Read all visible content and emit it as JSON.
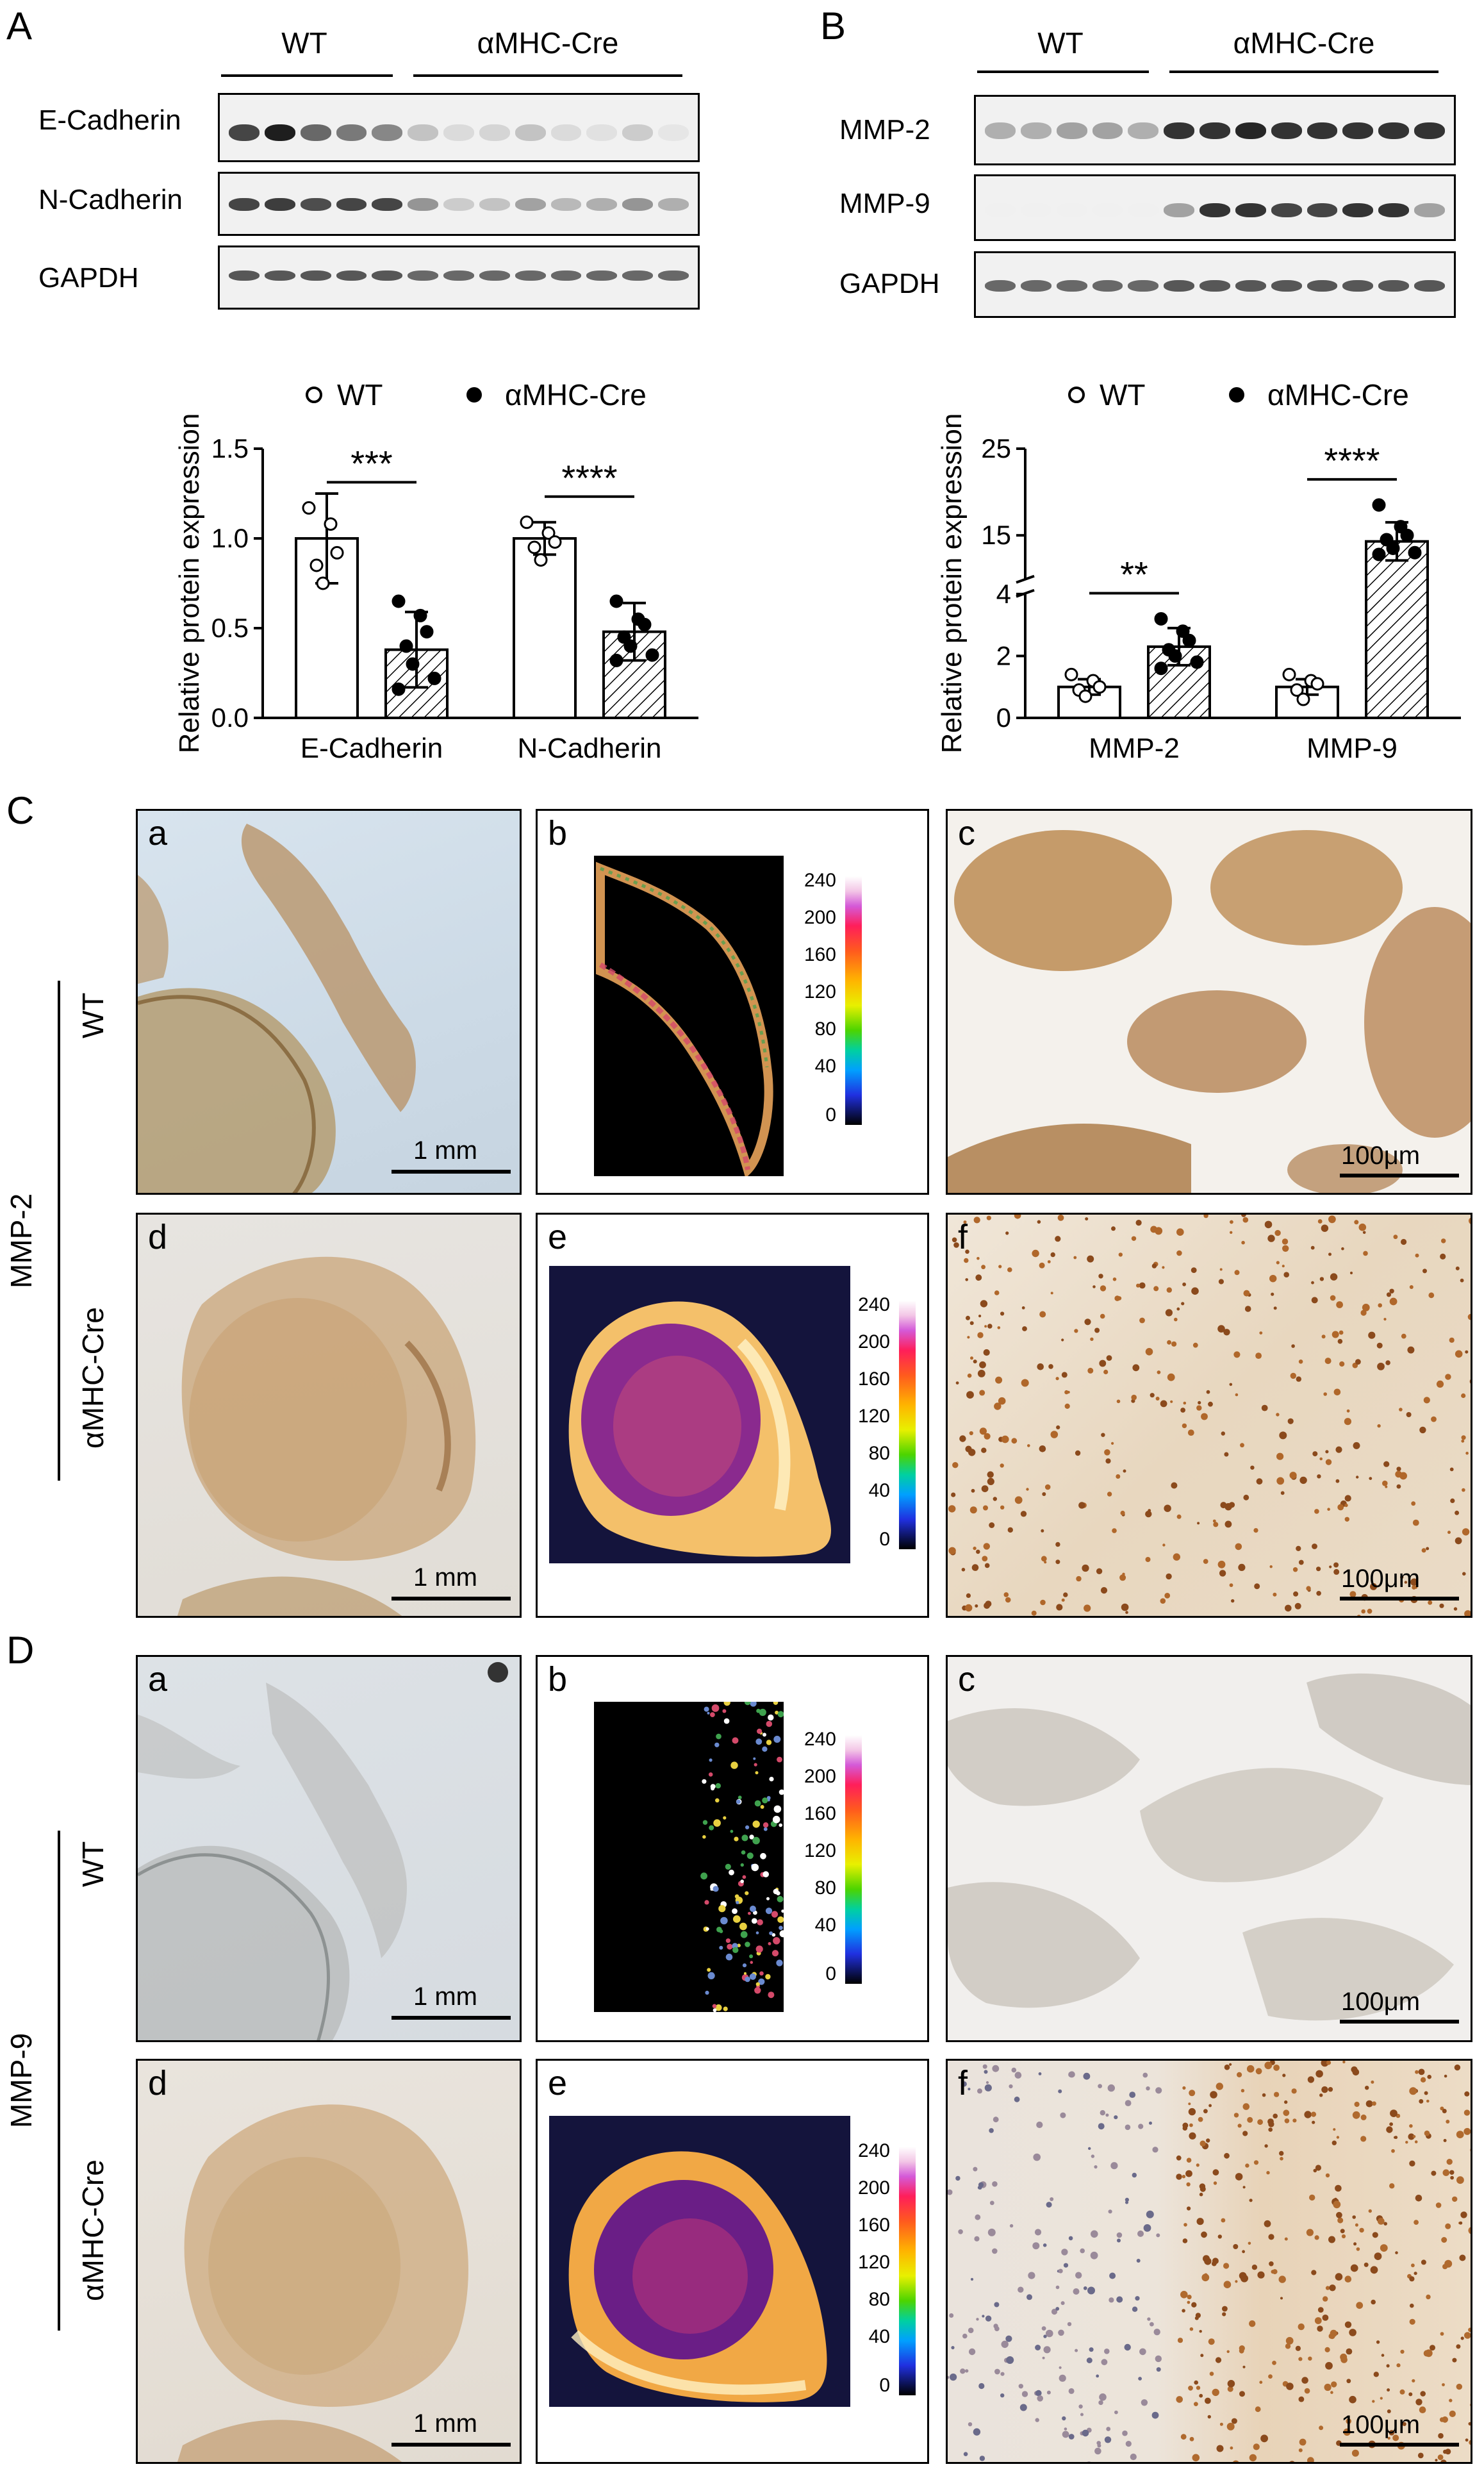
{
  "panels": {
    "A": "A",
    "B": "B",
    "C": "C",
    "D": "D"
  },
  "blot_A": {
    "groups": [
      "WT",
      "αMHC-Cre"
    ],
    "rows": [
      "E-Cadherin",
      "N-Cadherin",
      "GAPDH"
    ]
  },
  "blot_B": {
    "groups": [
      "WT",
      "αMHC-Cre"
    ],
    "rows": [
      "MMP-2",
      "MMP-9",
      "GAPDH"
    ]
  },
  "legend": {
    "wt": "WT",
    "cre": "αMHC-Cre"
  },
  "chart_data": [
    {
      "type": "bar",
      "ylabel": "Relative protein expression",
      "xlabel": "",
      "categories": [
        "E-Cadherin",
        "N-Cadherin"
      ],
      "ylim": [
        0,
        1.5
      ],
      "yticks": [
        "0.0",
        "0.5",
        "1.0",
        "1.5"
      ],
      "series": [
        {
          "name": "WT",
          "values": [
            1.0,
            1.0
          ],
          "errors": [
            0.25,
            0.09
          ],
          "points": [
            [
              1.17,
              1.08,
              0.92,
              0.85,
              0.75
            ],
            [
              1.09,
              1.03,
              0.98,
              0.95,
              0.88
            ]
          ]
        },
        {
          "name": "αMHC-Cre",
          "values": [
            0.38,
            0.48
          ],
          "errors": [
            0.21,
            0.16
          ],
          "points": [
            [
              0.65,
              0.57,
              0.48,
              0.4,
              0.3,
              0.22,
              0.16
            ],
            [
              0.65,
              0.55,
              0.52,
              0.45,
              0.4,
              0.35,
              0.32
            ]
          ]
        }
      ],
      "significance": [
        "***",
        "****"
      ]
    },
    {
      "type": "bar",
      "ylabel": "Relative protein expression",
      "xlabel": "",
      "categories": [
        "MMP-2",
        "MMP-9"
      ],
      "ylim": [
        0,
        25
      ],
      "axis_break": [
        4,
        10
      ],
      "yticks": [
        "0",
        "2",
        "4",
        "15",
        "25"
      ],
      "series": [
        {
          "name": "WT",
          "values": [
            1.0,
            1.0
          ],
          "errors": [
            0.25,
            0.25
          ],
          "points": [
            [
              1.4,
              1.2,
              1.0,
              0.9,
              0.7
            ],
            [
              1.4,
              1.2,
              1.1,
              0.9,
              0.6
            ]
          ]
        },
        {
          "name": "αMHC-Cre",
          "values": [
            2.3,
            14.3
          ],
          "errors": [
            0.6,
            2.2
          ],
          "points": [
            [
              3.2,
              2.8,
              2.5,
              2.2,
              2.0,
              1.8,
              1.6
            ],
            [
              18.5,
              16.0,
              15.0,
              14.5,
              13.5,
              13.0,
              12.8
            ]
          ]
        }
      ],
      "significance": [
        "**",
        "****"
      ]
    }
  ],
  "section_C": {
    "marker": "MMP-2",
    "row_labels": [
      "WT",
      "αMHC-Cre"
    ],
    "sub": [
      "a",
      "b",
      "c",
      "d",
      "e",
      "f"
    ],
    "scale_low": "1 mm",
    "scale_high": "100μm",
    "colorbar_ticks": [
      "240",
      "200",
      "160",
      "120",
      "80",
      "40",
      "0"
    ]
  },
  "section_D": {
    "marker": "MMP-9",
    "row_labels": [
      "WT",
      "αMHC-Cre"
    ],
    "sub": [
      "a",
      "b",
      "c",
      "d",
      "e",
      "f"
    ],
    "scale_low": "1 mm",
    "scale_high": "100μm",
    "colorbar_ticks": [
      "240",
      "200",
      "160",
      "120",
      "80",
      "40",
      "0"
    ]
  }
}
